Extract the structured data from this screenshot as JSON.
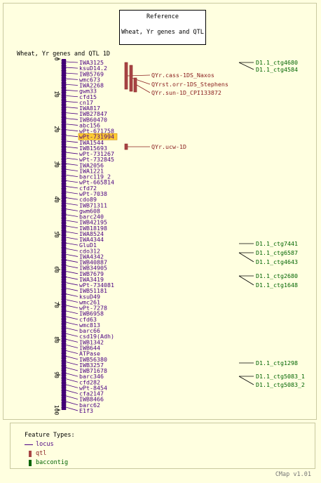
{
  "reference": {
    "heading": "Reference",
    "name": "Wheat, Yr genes and QTL"
  },
  "map": {
    "title": "Wheat, Yr genes and QTL 1D",
    "axis_ticks": [
      "0",
      "10",
      "20",
      "30",
      "40",
      "50",
      "60",
      "70",
      "80",
      "90",
      "100"
    ],
    "highlight_marker": "wPt-731994",
    "markers": [
      "IWA3125",
      "ksuD14.2",
      "IWB5769",
      "wmc673",
      "IWA2268",
      "gwm33",
      "cfd15",
      "cn17",
      "IWA817",
      "IWB27847",
      "IWB60470",
      "abc156",
      "wPt-671758",
      "wPt-731994",
      "IWA1544",
      "IWB15693",
      "wPt-731267",
      "wPt-732845",
      "IWA2056",
      "IWA1221",
      "barc119_2",
      "wPt-665814",
      "cfd72",
      "wPt-7038",
      "cdo89",
      "IWB71311",
      "gwm608",
      "barc240",
      "IWB42195",
      "IWB18198",
      "IWA8524",
      "IWA4344",
      "GluD1",
      "cdo312",
      "IWA4342",
      "IWB40887",
      "IWB34905",
      "IWB7679",
      "IWA3419",
      "wPt-734081",
      "IWB51181",
      "ksuD49",
      "wmc261",
      "wPt-7278",
      "IWB6958",
      "cfd63",
      "wmc813",
      "barc66",
      "csd19(Adh)",
      "IWB1342",
      "IWB644",
      "ATPase",
      "IWB56380",
      "IWB3257",
      "IWB71678",
      "barc346",
      "cfd282",
      "wPt-8454",
      "cfa2147",
      "IWB8466",
      "barc62",
      "E1f3"
    ],
    "qtls": [
      "QYr.cass-1DS_Naxos",
      "QYrst.orr-1DS_Stephens",
      "QYr.sun-1D_CPI133872",
      "QYr.ucw-1D"
    ],
    "contigs": [
      "D1.1_ctg4680",
      "D1.1_ctg4584",
      "D1.1_ctg7441",
      "D1.1_ctg6587",
      "D1.1_ctg4643",
      "D1.1_ctg2680",
      "D1.1_ctg1648",
      "D1.1_ctg1298",
      "D1.1_ctg5083_1",
      "D1.1_ctg5083_2"
    ]
  },
  "legend": {
    "title": "Feature Types:",
    "locus": "locus",
    "qtl": "qtl",
    "baccontig": "baccontig"
  },
  "colors": {
    "locus": "#4b0082",
    "qtl": "#8b2020",
    "qtl_bar": "#a84545",
    "contig": "#006400",
    "highlight": "#ffcc33",
    "background": "#ffffe0"
  },
  "footer": "CMap v1.01"
}
